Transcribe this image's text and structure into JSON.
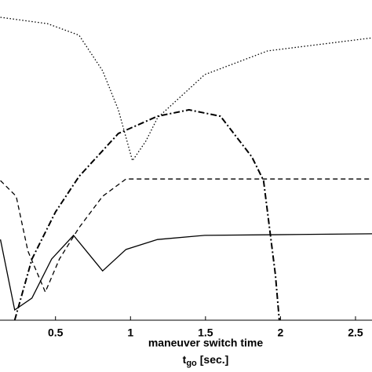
{
  "chart_data": {
    "type": "line",
    "xlabel": "maneuver switch time",
    "xunit": {
      "symbol": "t",
      "subscript": "go",
      "unit": "[sec.]"
    },
    "xlim": [
      0.13,
      2.61
    ],
    "xticks": [
      0.5,
      1,
      1.5,
      2,
      2.5
    ],
    "ylim": [
      0,
      100
    ],
    "series": [
      {
        "color": "#000000",
        "dash": "solid",
        "x": [
          0.133,
          0.228,
          0.343,
          0.474,
          0.62,
          0.814,
          0.97,
          1.18,
          1.495,
          1.966,
          2.615
        ],
        "values": [
          25.2,
          3.2,
          6.9,
          19.1,
          26.5,
          15.4,
          22.1,
          25.2,
          26.5,
          26.7,
          27.0
        ]
      },
      {
        "color": "#000000",
        "dash": "dashed",
        "x": [
          0.133,
          0.238,
          0.316,
          0.432,
          0.526,
          0.657,
          0.814,
          0.97,
          2.615
        ],
        "values": [
          43.6,
          38.7,
          21.6,
          8.8,
          19.1,
          28.9,
          38.7,
          44.1,
          44.1
        ]
      },
      {
        "color": "#000000",
        "dash": "dotted",
        "x": [
          0.133,
          0.447,
          0.657,
          0.814,
          0.919,
          1.013,
          1.102,
          1.18,
          1.495,
          1.914,
          2.615
        ],
        "values": [
          94.6,
          92.6,
          89.0,
          77.9,
          65.7,
          49.8,
          55.9,
          63.2,
          76.7,
          84.1,
          88.2
        ]
      },
      {
        "color": "#000000",
        "dash": "dashdot",
        "x": [
          0.228,
          0.343,
          0.5,
          0.657,
          0.919,
          1.18,
          1.39,
          1.6,
          1.809,
          1.887,
          1.966,
          1.992
        ],
        "values": [
          0,
          19.1,
          33.8,
          44.9,
          58.3,
          63.7,
          65.7,
          63.7,
          51.0,
          43.6,
          14.2,
          0
        ]
      }
    ]
  }
}
